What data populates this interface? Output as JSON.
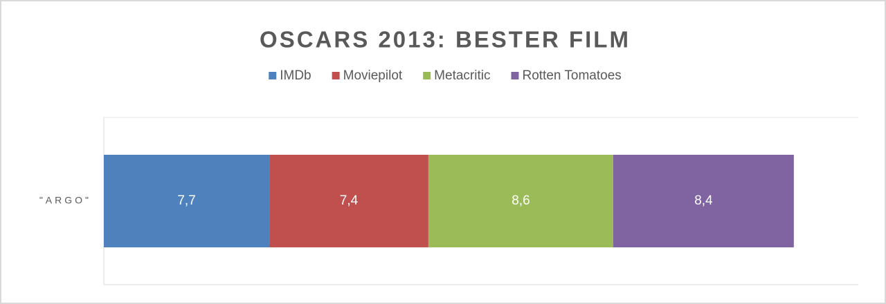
{
  "chart_data": {
    "type": "stacked_bar_horizontal",
    "title": "OSCARS 2013: BESTER FILM",
    "categories": [
      "\"ARGO\""
    ],
    "series": [
      {
        "name": "IMDb",
        "color": "#4f81bd",
        "values": [
          7.7
        ],
        "value_labels": [
          "7,7"
        ]
      },
      {
        "name": "Moviepilot",
        "color": "#c0504d",
        "values": [
          7.4
        ],
        "value_labels": [
          "7,4"
        ]
      },
      {
        "name": "Metacritic",
        "color": "#9bbb59",
        "values": [
          8.6
        ],
        "value_labels": [
          "8,6"
        ]
      },
      {
        "name": "Rotten Tomatoes",
        "color": "#8064a2",
        "values": [
          8.4
        ],
        "value_labels": [
          "8,4"
        ]
      }
    ],
    "xlim": [
      0,
      35.1
    ],
    "legend": "top"
  }
}
